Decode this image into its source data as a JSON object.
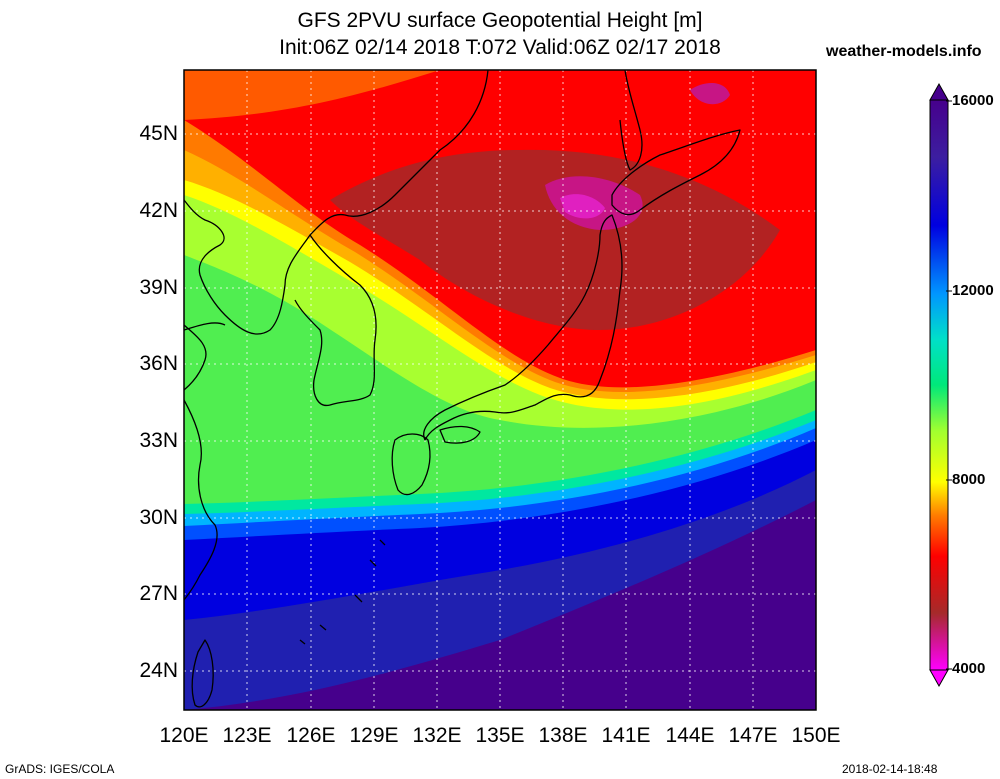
{
  "header": {
    "title_line1": "GFS 2PVU surface Geopotential Height [m]",
    "title_line2": "Init:06Z 02/14 2018 T:072 Valid:06Z 02/17 2018",
    "site": "weather-models.info"
  },
  "axes": {
    "lat_labels": [
      "45N",
      "42N",
      "39N",
      "36N",
      "33N",
      "30N",
      "27N",
      "24N"
    ],
    "lon_labels": [
      "120E",
      "123E",
      "126E",
      "129E",
      "132E",
      "135E",
      "138E",
      "141E",
      "144E",
      "147E",
      "150E"
    ]
  },
  "colorbar": {
    "labels": [
      "16000",
      "12000",
      "8000",
      "4000"
    ],
    "colors": [
      "#ff00ff",
      "#c71585",
      "#a52a2a",
      "#ff0000",
      "#ff3d00",
      "#ff7a00",
      "#ffb000",
      "#ffff00",
      "#d8ff2a",
      "#a0ff30",
      "#50f050",
      "#00e87a",
      "#00e0c8",
      "#00c8ff",
      "#0096ff",
      "#0046ff",
      "#0000e0",
      "#2828b8",
      "#501ea0",
      "#46008c"
    ]
  },
  "footer": {
    "left": "GrADS: IGES/COLA",
    "right": "2018-02-14-18:48"
  }
}
